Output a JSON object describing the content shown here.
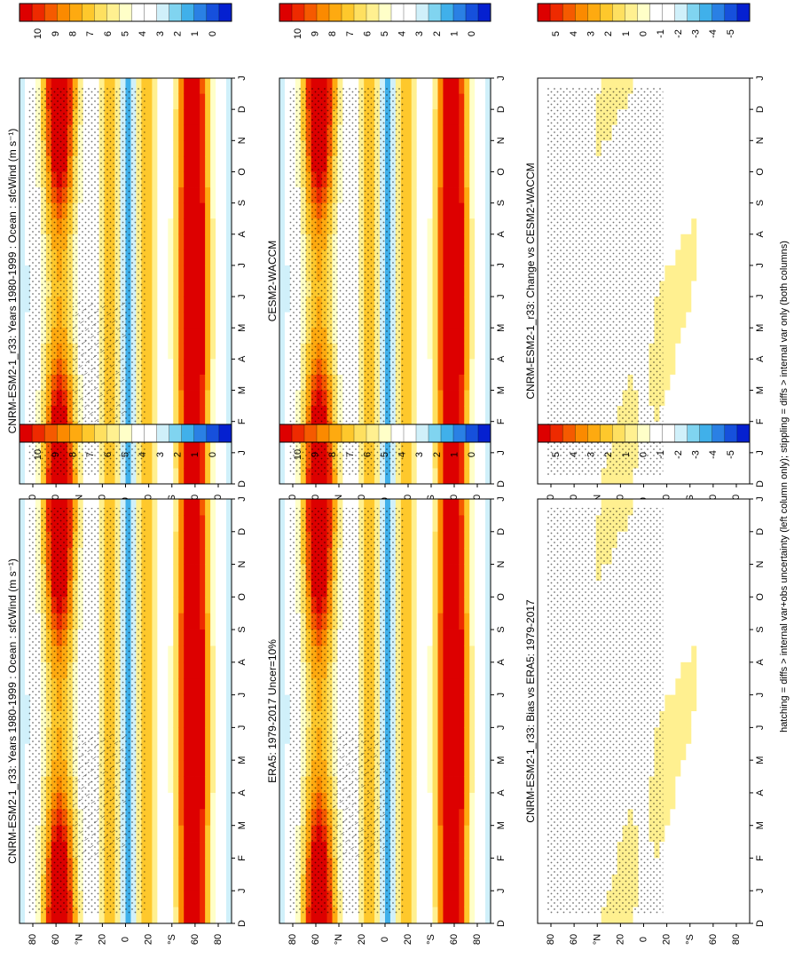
{
  "footnote": "hatching = diffs > internal var+obs uncertainty (left column only); stippling = diffs > internal var only (both columns)",
  "chart_data": [
    {
      "type": "heatmap",
      "title": "CNRM-ESM2-1_r33: Years 1980-1999 : Ocean : sfcWind (m s⁻¹)",
      "x_ticks": [
        "D",
        "J",
        "F",
        "M",
        "A",
        "M",
        "J",
        "J",
        "A",
        "S",
        "O",
        "N",
        "D",
        "J"
      ],
      "y_ticks": [
        "80",
        "60",
        "°N",
        "20",
        "0",
        "20",
        "°S",
        "60",
        "80"
      ],
      "colorbar_labels": [
        "10",
        "9",
        "8",
        "7",
        "6",
        "5",
        "4",
        "3",
        "2",
        "1",
        "0"
      ],
      "colorbar_colors": [
        "#dd0000",
        "#ee2a00",
        "#f55a00",
        "#fb8a00",
        "#feaa10",
        "#fec82c",
        "#fee060",
        "#fff090",
        "#ffffc8",
        "#ffffff",
        "#ffffff",
        "#d0f0fa",
        "#80d4f0",
        "#40b0ea",
        "#2a80e4",
        "#1650dc",
        "#0520d0"
      ]
    },
    {
      "type": "heatmap",
      "title": "CNRM-ESM2-1_r33: Years 1980-1999 : Ocean : sfcWind (m s⁻¹)",
      "x_ticks": [
        "D",
        "J",
        "F",
        "M",
        "A",
        "M",
        "J",
        "J",
        "A",
        "S",
        "O",
        "N",
        "D",
        "J"
      ],
      "y_ticks": [
        "80",
        "60",
        "°N",
        "20",
        "0",
        "20",
        "°S",
        "60",
        "80"
      ],
      "colorbar_labels": [
        "10",
        "9",
        "8",
        "7",
        "6",
        "5",
        "4",
        "3",
        "2",
        "1",
        "0"
      ],
      "colorbar_colors": [
        "#dd0000",
        "#ee2a00",
        "#f55a00",
        "#fb8a00",
        "#feaa10",
        "#fec82c",
        "#fee060",
        "#fff090",
        "#ffffc8",
        "#ffffff",
        "#ffffff",
        "#d0f0fa",
        "#80d4f0",
        "#40b0ea",
        "#2a80e4",
        "#1650dc",
        "#0520d0"
      ]
    },
    {
      "type": "heatmap",
      "title": "ERA5: 1979-2017 Uncer=10%",
      "x_ticks": [
        "D",
        "J",
        "F",
        "M",
        "A",
        "M",
        "J",
        "J",
        "A",
        "S",
        "O",
        "N",
        "D",
        "J"
      ],
      "y_ticks": [
        "80",
        "60",
        "°N",
        "20",
        "0",
        "20",
        "°S",
        "60",
        "80"
      ],
      "colorbar_labels": [
        "10",
        "9",
        "8",
        "7",
        "6",
        "5",
        "4",
        "3",
        "2",
        "1",
        "0"
      ],
      "colorbar_colors": [
        "#dd0000",
        "#ee2a00",
        "#f55a00",
        "#fb8a00",
        "#feaa10",
        "#fec82c",
        "#fee060",
        "#fff090",
        "#ffffc8",
        "#ffffff",
        "#ffffff",
        "#d0f0fa",
        "#80d4f0",
        "#40b0ea",
        "#2a80e4",
        "#1650dc",
        "#0520d0"
      ]
    },
    {
      "type": "heatmap",
      "title": "CESM2-WACCM",
      "x_ticks": [
        "D",
        "J",
        "F",
        "M",
        "A",
        "M",
        "J",
        "J",
        "A",
        "S",
        "O",
        "N",
        "D",
        "J"
      ],
      "y_ticks": [
        "80",
        "60",
        "°N",
        "20",
        "0",
        "20",
        "°S",
        "60",
        "80"
      ],
      "colorbar_labels": [
        "10",
        "9",
        "8",
        "7",
        "6",
        "5",
        "4",
        "3",
        "2",
        "1",
        "0"
      ],
      "colorbar_colors": [
        "#dd0000",
        "#ee2a00",
        "#f55a00",
        "#fb8a00",
        "#feaa10",
        "#fec82c",
        "#fee060",
        "#fff090",
        "#ffffc8",
        "#ffffff",
        "#ffffff",
        "#d0f0fa",
        "#80d4f0",
        "#40b0ea",
        "#2a80e4",
        "#1650dc",
        "#0520d0"
      ]
    },
    {
      "type": "heatmap",
      "title": "CNRM-ESM2-1_r33: Bias vs ERA5: 1979-2017",
      "x_ticks": [
        "D",
        "J",
        "F",
        "M",
        "A",
        "M",
        "J",
        "J",
        "A",
        "S",
        "O",
        "N",
        "D",
        "J"
      ],
      "y_ticks": [
        "80",
        "60",
        "°N",
        "20",
        "0",
        "20",
        "°S",
        "60",
        "80"
      ],
      "colorbar_labels": [
        "5",
        "4",
        "3",
        "2",
        "1",
        "0",
        "-1",
        "-2",
        "-3",
        "-4",
        "-5"
      ],
      "colorbar_colors": [
        "#dd0000",
        "#ee2a00",
        "#f55a00",
        "#fb8a00",
        "#feaa10",
        "#fec82c",
        "#fee060",
        "#fff090",
        "#ffffc8",
        "#ffffff",
        "#ffffff",
        "#d0f0fa",
        "#80d4f0",
        "#40b0ea",
        "#2a80e4",
        "#1650dc",
        "#0520d0"
      ]
    },
    {
      "type": "heatmap",
      "title": "CNRM-ESM2-1_r33: Change vs CESM2-WACCM",
      "x_ticks": [
        "D",
        "J",
        "F",
        "M",
        "A",
        "M",
        "J",
        "J",
        "A",
        "S",
        "O",
        "N",
        "D",
        "J"
      ],
      "y_ticks": [
        "80",
        "60",
        "°N",
        "20",
        "0",
        "20",
        "°S",
        "60",
        "80"
      ],
      "colorbar_labels": [
        "5",
        "4",
        "3",
        "2",
        "1",
        "0",
        "-1",
        "-2",
        "-3",
        "-4",
        "-5"
      ],
      "colorbar_colors": [
        "#dd0000",
        "#ee2a00",
        "#f55a00",
        "#fb8a00",
        "#feaa10",
        "#fec82c",
        "#fee060",
        "#fff090",
        "#ffffc8",
        "#ffffff",
        "#ffffff",
        "#d0f0fa",
        "#80d4f0",
        "#40b0ea",
        "#2a80e4",
        "#1650dc",
        "#0520d0"
      ]
    }
  ]
}
